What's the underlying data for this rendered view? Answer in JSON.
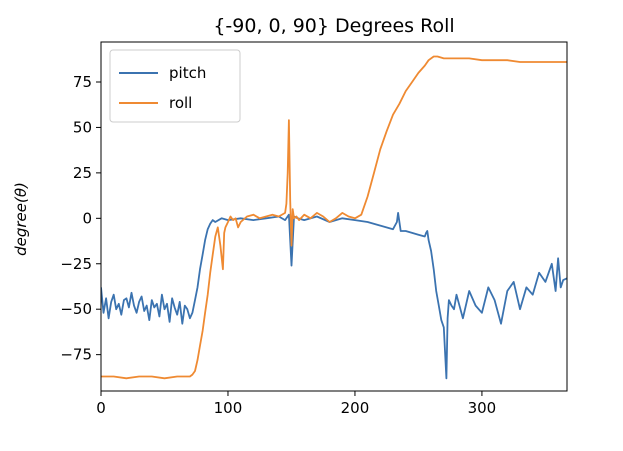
{
  "chart_data": {
    "type": "line",
    "title": "{-90, 0, 90} Degrees Roll",
    "xlabel": "",
    "ylabel": "degree(θ)",
    "xlim": [
      0,
      367
    ],
    "ylim": [
      -95,
      97
    ],
    "xticks": [
      0,
      100,
      200,
      300
    ],
    "yticks": [
      75,
      50,
      25,
      0,
      -25,
      -50,
      -75
    ],
    "xtick_labels": [
      "0",
      "100",
      "200",
      "300"
    ],
    "ytick_labels": [
      "75",
      "50",
      "25",
      "0",
      "−25",
      "−50",
      "−75"
    ],
    "grid": false,
    "legend_position": "top-left",
    "series": [
      {
        "name": "pitch",
        "color": "#3b73b0",
        "x": [
          0,
          2,
          4,
          6,
          8,
          10,
          12,
          14,
          16,
          18,
          20,
          22,
          24,
          26,
          28,
          30,
          32,
          34,
          36,
          38,
          40,
          42,
          44,
          46,
          48,
          50,
          52,
          54,
          56,
          58,
          60,
          62,
          64,
          66,
          68,
          70,
          72,
          74,
          76,
          78,
          80,
          82,
          84,
          86,
          88,
          90,
          95,
          100,
          110,
          120,
          130,
          140,
          145,
          148,
          150,
          152,
          155,
          160,
          170,
          180,
          190,
          200,
          210,
          220,
          230,
          233,
          234,
          236,
          240,
          245,
          250,
          255,
          256,
          257,
          258,
          260,
          262,
          264,
          266,
          268,
          270,
          272,
          273,
          274,
          276,
          278,
          280,
          285,
          290,
          295,
          300,
          305,
          310,
          315,
          320,
          325,
          330,
          335,
          340,
          345,
          350,
          355,
          358,
          360,
          362,
          364,
          367
        ],
        "y": [
          -38,
          -52,
          -44,
          -55,
          -46,
          -42,
          -50,
          -47,
          -53,
          -45,
          -44,
          -49,
          -41,
          -48,
          -52,
          -46,
          -43,
          -51,
          -48,
          -56,
          -45,
          -49,
          -47,
          -54,
          -42,
          -50,
          -47,
          -57,
          -44,
          -49,
          -53,
          -46,
          -58,
          -48,
          -50,
          -55,
          -52,
          -45,
          -38,
          -28,
          -20,
          -12,
          -6,
          -3,
          -1,
          -2,
          0,
          -1,
          0,
          -1,
          0,
          1,
          -1,
          2,
          -26,
          1,
          0,
          -1,
          1,
          -2,
          0,
          -1,
          -2,
          -4,
          -6,
          -2,
          3,
          -7,
          -7,
          -8,
          -9,
          -10,
          -8,
          -7,
          -12,
          -18,
          -28,
          -40,
          -48,
          -56,
          -60,
          -88,
          -55,
          -45,
          -48,
          -50,
          -42,
          -55,
          -40,
          -48,
          -52,
          -38,
          -45,
          -58,
          -40,
          -35,
          -50,
          -38,
          -42,
          -30,
          -35,
          -25,
          -40,
          -22,
          -38,
          -34,
          -33
        ]
      },
      {
        "name": "roll",
        "color": "#ef8a32",
        "x": [
          0,
          10,
          20,
          30,
          40,
          50,
          60,
          70,
          72,
          74,
          76,
          78,
          80,
          82,
          84,
          86,
          88,
          90,
          92,
          94,
          96,
          97,
          98,
          100,
          102,
          104,
          106,
          108,
          110,
          115,
          120,
          125,
          130,
          135,
          140,
          145,
          146,
          147,
          148,
          149,
          150,
          151,
          152,
          154,
          156,
          160,
          165,
          170,
          175,
          180,
          185,
          190,
          195,
          200,
          205,
          210,
          215,
          220,
          225,
          230,
          235,
          240,
          245,
          250,
          255,
          258,
          260,
          262,
          265,
          270,
          280,
          290,
          300,
          310,
          320,
          330,
          340,
          350,
          360,
          367
        ],
        "y": [
          -87,
          -87,
          -88,
          -87,
          -87,
          -88,
          -87,
          -87,
          -86,
          -84,
          -78,
          -70,
          -62,
          -52,
          -42,
          -30,
          -20,
          -10,
          -5,
          -15,
          -28,
          -8,
          -5,
          -2,
          1,
          -1,
          0,
          -5,
          -2,
          1,
          2,
          0,
          1,
          2,
          1,
          3,
          8,
          25,
          54,
          10,
          -15,
          5,
          0,
          1,
          -1,
          2,
          0,
          3,
          1,
          -2,
          0,
          3,
          1,
          0,
          2,
          12,
          25,
          38,
          48,
          57,
          63,
          70,
          75,
          80,
          84,
          87,
          88,
          89,
          89,
          88,
          88,
          88,
          87,
          87,
          87,
          86,
          86,
          86,
          86,
          86
        ]
      }
    ]
  }
}
